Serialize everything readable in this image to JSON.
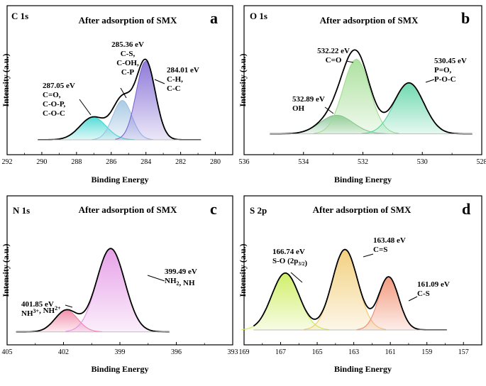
{
  "chart_data": [
    {
      "id": "a",
      "type": "line",
      "letter": "a",
      "core": "C 1s",
      "title": "After adsorption of SMX",
      "xlabel": "Binding Energy",
      "ylabel": "Intensity (a.u.)",
      "xlim": [
        292,
        279
      ],
      "ylim": [
        0,
        1.1
      ],
      "xticks": [
        "292",
        "290",
        "288",
        "286",
        "284",
        "282",
        "280"
      ],
      "baseline": 0.08,
      "series": [
        {
          "name": "C-O-C, C-O-P, C=O",
          "center": 287.05,
          "height": 0.23,
          "width": 0.75,
          "color": "#3ad6cf"
        },
        {
          "name": "C-S, C-OH, C-P",
          "center": 285.36,
          "height": 0.4,
          "width": 0.55,
          "color": "#9cc1e0"
        },
        {
          "name": "C-H, C-C",
          "center": 284.01,
          "height": 0.8,
          "width": 0.55,
          "color": "#7c63d2"
        }
      ],
      "annotations": [
        {
          "lines": [
            "287.05 eV",
            "C=O,",
            "C-O-P,",
            "C-O-C"
          ]
        },
        {
          "lines": [
            "285.36 eV",
            "C-S,",
            "C-OH,",
            "C-P"
          ]
        },
        {
          "lines": [
            "284.01 eV",
            "C-H,",
            "C-C"
          ]
        }
      ]
    },
    {
      "id": "b",
      "type": "line",
      "letter": "b",
      "core": "O 1s",
      "title": "After adsorption of SMX",
      "xlabel": "Binding Energy",
      "ylabel": "Intensity (a.u.)",
      "xlim": [
        536,
        528
      ],
      "ylim": [
        0,
        1.1
      ],
      "xticks": [
        "536",
        "534",
        "532",
        "530",
        "528"
      ],
      "baseline": 0.14,
      "series": [
        {
          "name": "OH",
          "center": 532.89,
          "height": 0.19,
          "width": 0.55,
          "color": "#7fbf8f"
        },
        {
          "name": "C=O",
          "center": 532.22,
          "height": 0.76,
          "width": 0.45,
          "color": "#9fdc8f"
        },
        {
          "name": "P=O, P-O-C",
          "center": 530.45,
          "height": 0.52,
          "width": 0.5,
          "color": "#56d2a2"
        }
      ],
      "annotations": [
        {
          "lines": [
            "532.22 eV",
            "C=O"
          ]
        },
        {
          "lines": [
            "532.89 eV",
            "OH"
          ]
        },
        {
          "lines": [
            "530.45 eV",
            "P=O,",
            "P-O-C"
          ]
        }
      ]
    },
    {
      "id": "c",
      "type": "line",
      "letter": "c",
      "core": "N 1s",
      "title": "After adsorption of SMX",
      "xlabel": "Binding Energy",
      "ylabel": "Intensity (a.u.)",
      "xlim": [
        405,
        393
      ],
      "ylim": [
        0,
        1.1
      ],
      "xticks": [
        "405",
        "402",
        "399",
        "396",
        "393"
      ],
      "baseline": 0.06,
      "series": [
        {
          "name": "NH3+, NH2+",
          "center": 401.85,
          "height": 0.22,
          "width": 0.6,
          "color": "#f07fa0"
        },
        {
          "name": "NH2, NH",
          "center": 399.49,
          "height": 0.85,
          "width": 0.75,
          "color": "#e291e4"
        }
      ],
      "annotations": [
        {
          "lines": [
            "399.49 eV",
            "NH2, NH"
          ]
        },
        {
          "lines": [
            "401.85 eV",
            "NH3+, NH2+"
          ]
        }
      ]
    },
    {
      "id": "d",
      "type": "line",
      "letter": "d",
      "core": "S 2p",
      "title": "After adsorption of SMX",
      "xlabel": "Binding Energy",
      "ylabel": "Intensity (a.u.)",
      "xlim": [
        169,
        156
      ],
      "ylim": [
        0,
        1.1
      ],
      "xticks": [
        "169",
        "167",
        "165",
        "163",
        "161",
        "159",
        "157"
      ],
      "baseline": 0.08,
      "series": [
        {
          "name": "S-O (2p3/2)",
          "center": 166.74,
          "height": 0.58,
          "width": 0.75,
          "color": "#c8ec4f"
        },
        {
          "name": "C=S",
          "center": 163.48,
          "height": 0.82,
          "width": 0.7,
          "color": "#f0c86a"
        },
        {
          "name": "C-S",
          "center": 161.09,
          "height": 0.54,
          "width": 0.55,
          "color": "#f08a6a"
        }
      ],
      "annotations": [
        {
          "lines": [
            "166.74 eV",
            "S-O (2p3/2)"
          ]
        },
        {
          "lines": [
            "163.48 eV",
            "C=S"
          ]
        },
        {
          "lines": [
            "161.09 eV",
            "C-S"
          ]
        }
      ]
    }
  ]
}
